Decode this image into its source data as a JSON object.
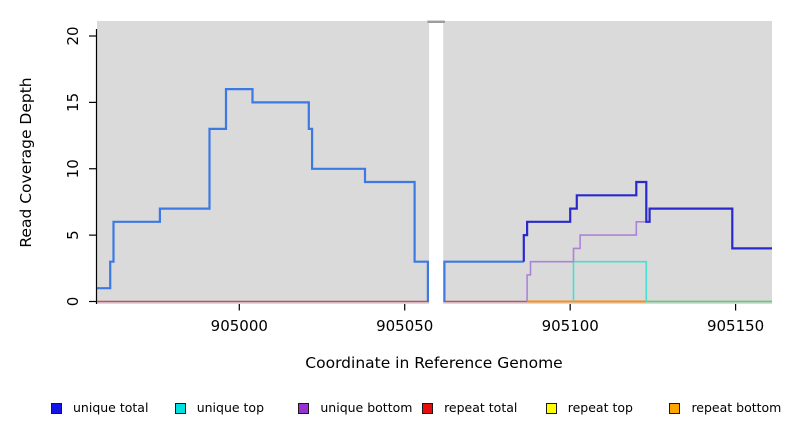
{
  "chart_data": {
    "type": "line",
    "subtype": "step-coverage",
    "title": "",
    "xlabel": "Coordinate in Reference Genome",
    "ylabel": "Read Coverage Depth",
    "xlim": [
      904957,
      905161
    ],
    "ylim": [
      0,
      21
    ],
    "x_ticks": [
      "905000",
      "905050",
      "905100",
      "905150"
    ],
    "x_tick_values": [
      905000,
      905050,
      905100,
      905150
    ],
    "y_ticks": [
      "0",
      "5",
      "10",
      "15",
      "20"
    ],
    "y_tick_values": [
      0,
      5,
      10,
      15,
      20
    ],
    "grid": false,
    "legend_position": "bottom",
    "plot_bg_color": "#DADADA",
    "gap_region": {
      "from": 905057,
      "to": 905062,
      "fill": "#FFFFFF",
      "cap_color": "#9C9C9C"
    },
    "series": [
      {
        "name": "unique total",
        "color": "#1414E8",
        "points": [
          [
            904957,
            1
          ],
          [
            904961,
            3
          ],
          [
            904962,
            6
          ],
          [
            904976,
            7
          ],
          [
            904991,
            13
          ],
          [
            904996,
            16
          ],
          [
            905004,
            15
          ],
          [
            905021,
            13
          ],
          [
            905022,
            10
          ],
          [
            905038,
            9
          ],
          [
            905053,
            3
          ],
          [
            905057,
            0
          ],
          [
            905062,
            3
          ],
          [
            905086,
            5
          ],
          [
            905087,
            6
          ],
          [
            905100,
            7
          ],
          [
            905102,
            8
          ],
          [
            905120,
            9
          ],
          [
            905123,
            6
          ],
          [
            905124,
            7
          ],
          [
            905149,
            4
          ],
          [
            905161,
            4
          ]
        ]
      },
      {
        "name": "unique top",
        "color": "#00E0E0",
        "points": [
          [
            904957,
            0
          ],
          [
            905101,
            3
          ],
          [
            905123,
            0
          ],
          [
            905161,
            0
          ]
        ]
      },
      {
        "name": "unique bottom",
        "color": "#9A30D2",
        "points": [
          [
            904957,
            0
          ],
          [
            905087,
            2
          ],
          [
            905088,
            3
          ],
          [
            905101,
            4
          ],
          [
            905103,
            5
          ],
          [
            905120,
            6
          ],
          [
            905124,
            7
          ],
          [
            905149,
            4
          ],
          [
            905161,
            4
          ]
        ]
      },
      {
        "name": "repeat total",
        "color": "#E80D0D",
        "points": [
          [
            904957,
            0
          ],
          [
            905161,
            0
          ]
        ]
      },
      {
        "name": "repeat top",
        "color": "#FFFF00",
        "points": [
          [
            904957,
            0
          ],
          [
            905161,
            0
          ]
        ]
      },
      {
        "name": "repeat bottom",
        "color": "#FFA500",
        "points": [
          [
            904957,
            0
          ],
          [
            905161,
            0
          ]
        ]
      }
    ],
    "render_layers": {
      "baseline_segments": [
        {
          "series": "repeat total",
          "color": "#C84B66",
          "width": 1.5,
          "from": 904957,
          "to": 905087
        },
        {
          "series": "repeat bottom",
          "color": "#FB8C17",
          "width": 2.0,
          "from": 905087,
          "to": 905123
        },
        {
          "series": "top overlap",
          "color": "#6BC77F",
          "width": 1.8,
          "from": 905123,
          "to": 905161
        }
      ],
      "line_segments": [
        {
          "series": "unique top",
          "color": "#46DFD0",
          "width": 1.6,
          "points": [
            [
              905101,
              0
            ],
            [
              905101,
              3
            ],
            [
              905123,
              0
            ]
          ]
        },
        {
          "series": "unique bottom",
          "color": "#AB84D8",
          "width": 1.6,
          "points": [
            [
              905087,
              0
            ],
            [
              905087,
              2
            ],
            [
              905088,
              3
            ],
            [
              905101,
              4
            ],
            [
              905103,
              5
            ],
            [
              905120,
              6
            ],
            [
              905124,
              7
            ],
            [
              905149,
              4
            ],
            [
              905161,
              4
            ]
          ]
        },
        {
          "series": "unique total",
          "color": "#3D79E3",
          "width": 2.2,
          "points": [
            [
              904957,
              1
            ],
            [
              904961,
              3
            ],
            [
              904962,
              6
            ],
            [
              904976,
              7
            ],
            [
              904991,
              13
            ],
            [
              904996,
              16
            ],
            [
              905004,
              15
            ],
            [
              905021,
              13
            ],
            [
              905022,
              10
            ],
            [
              905038,
              9
            ],
            [
              905053,
              3
            ],
            [
              905057,
              0
            ]
          ]
        },
        {
          "series": "unique total",
          "color": "#3D79E3",
          "width": 2.2,
          "points": [
            [
              905062,
              0
            ],
            [
              905062,
              3
            ],
            [
              905086,
              3
            ]
          ]
        },
        {
          "series": "unique total",
          "color": "#2A2ACC",
          "width": 2.2,
          "points": [
            [
              905086,
              3
            ],
            [
              905086,
              5
            ],
            [
              905087,
              6
            ],
            [
              905100,
              7
            ],
            [
              905102,
              8
            ],
            [
              905120,
              9
            ],
            [
              905123,
              6
            ],
            [
              905124,
              7
            ],
            [
              905149,
              4
            ],
            [
              905161,
              4
            ]
          ]
        }
      ]
    }
  },
  "legend": {
    "items": [
      {
        "label": "unique total",
        "color": "#1414E8"
      },
      {
        "label": "unique top",
        "color": "#00E0E0"
      },
      {
        "label": "unique bottom",
        "color": "#9A30D2"
      },
      {
        "label": "repeat total",
        "color": "#E80D0D"
      },
      {
        "label": "repeat top",
        "color": "#FFFF00"
      },
      {
        "label": "repeat bottom",
        "color": "#FFA500"
      }
    ]
  }
}
